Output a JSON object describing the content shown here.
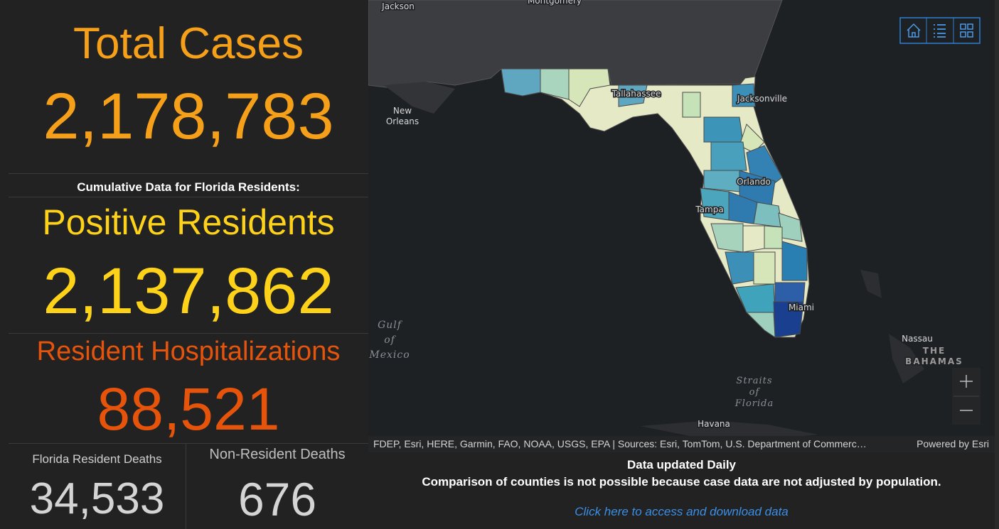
{
  "stats": {
    "total_cases": {
      "title": "Total Cases",
      "value": "2,178,783"
    },
    "subtitle": "Cumulative Data for Florida Residents:",
    "positive_residents": {
      "title": "Positive Residents",
      "value": "2,137,862"
    },
    "hospitalizations": {
      "title": "Resident Hospitalizations",
      "value": "88,521"
    },
    "resident_deaths": {
      "title": "Florida Resident Deaths",
      "value": "34,533"
    },
    "nonresident_deaths": {
      "title": "Non-Resident Deaths",
      "value": "676"
    }
  },
  "map": {
    "labels": {
      "jackson": "Jackson",
      "montgomery": "Montgomery",
      "new_orleans": [
        "New",
        "Orleans"
      ],
      "tallahassee": "Tallahassee",
      "jacksonville": "Jacksonville",
      "orlando": "Orlando",
      "tampa": "Tampa",
      "miami": "Miami",
      "gulf": [
        "Gulf",
        "of",
        "Mexico"
      ],
      "nassau": "Nassau",
      "bahamas": [
        "THE",
        "BAHAMAS"
      ],
      "straits": [
        "Straits",
        "of",
        "Florida"
      ],
      "havana": "Havana"
    },
    "attribution": "FDEP, Esri, HERE, Garmin, FAO, NOAA, USGS, EPA | Sources: Esri, TomTom, U.S. Department of Commerc…",
    "powered_by": "Powered by Esri"
  },
  "footer": {
    "updated": "Data updated Daily",
    "note": "Comparison of counties is not possible because case data are not adjusted by population.",
    "link": "Click here to access and download data"
  }
}
